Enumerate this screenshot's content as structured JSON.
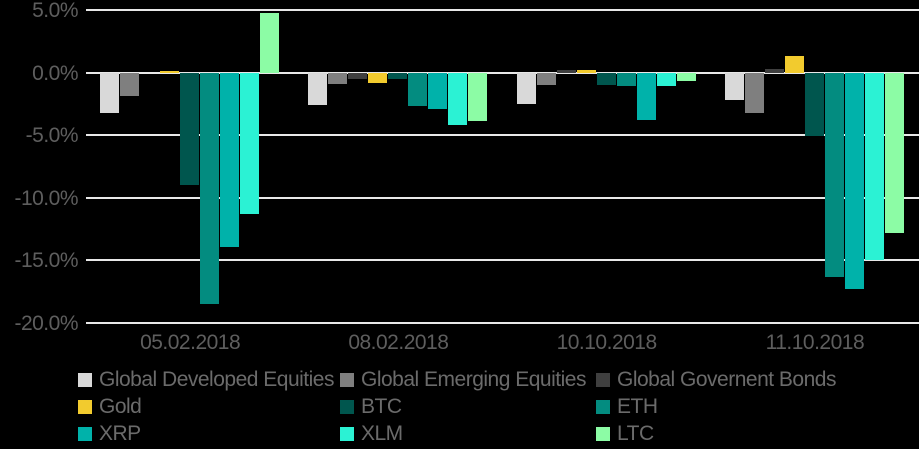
{
  "chart_data": {
    "type": "bar",
    "title": "",
    "categories": [
      "05.02.2018",
      "08.02.2018",
      "10.10.2018",
      "11.10.2018"
    ],
    "series": [
      {
        "name": "Global Developed Equities",
        "color": "#d9d9d9",
        "values": [
          -3.2,
          -2.6,
          -2.5,
          -2.2
        ]
      },
      {
        "name": "Global Emerging Equities",
        "color": "#7f7f7f",
        "values": [
          -1.9,
          -0.9,
          -1.0,
          -3.2
        ]
      },
      {
        "name": "Global Governent Bonds",
        "color": "#3f3f3f",
        "values": [
          0.0,
          -0.5,
          0.2,
          0.3
        ]
      },
      {
        "name": "Gold",
        "color": "#f2cb2e",
        "values": [
          0.1,
          -0.8,
          0.2,
          1.3
        ]
      },
      {
        "name": "BTC",
        "color": "#00564e",
        "values": [
          -9.0,
          -0.5,
          -1.0,
          -5.1
        ]
      },
      {
        "name": "ETH",
        "color": "#038c80",
        "values": [
          -18.5,
          -2.7,
          -1.1,
          -16.3
        ]
      },
      {
        "name": "XRP",
        "color": "#00b2aa",
        "values": [
          -13.9,
          -2.9,
          -3.8,
          -17.3
        ]
      },
      {
        "name": "XLM",
        "color": "#2bf2d4",
        "values": [
          -11.3,
          -4.2,
          -1.1,
          -15.0
        ]
      },
      {
        "name": "LTC",
        "color": "#8cfca5",
        "values": [
          4.8,
          -3.9,
          -0.7,
          -12.8
        ]
      }
    ],
    "ylim": [
      -20,
      5
    ],
    "ytick_step": 5,
    "ytick_labels": [
      "5.0%",
      "0.0%",
      "-5.0%",
      "-10.0%",
      "-15.0%",
      "-20.0%"
    ],
    "xlabel": "",
    "ylabel": "",
    "grid": true,
    "legend_position": "bottom",
    "background_color": "#000000",
    "gridline_color": "#e8e8e8",
    "axis_text_color": "#5e5e5e",
    "legend_text_color": "#6b6b6b"
  }
}
